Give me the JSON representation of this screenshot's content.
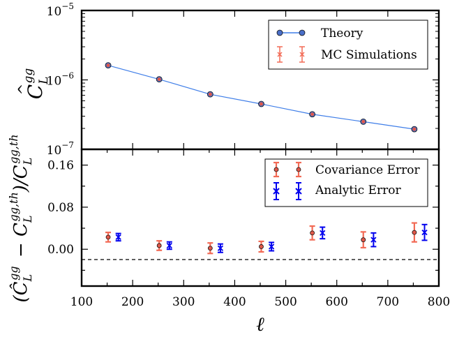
{
  "chart_data": [
    {
      "type": "line",
      "ylabel": "Ĉ_L^{gg}",
      "yscale": "log",
      "xlim": [
        100,
        800
      ],
      "ylim_exp": [
        -7,
        -5
      ],
      "ytick_labels": [
        {
          "base": "10",
          "exp": "−7"
        },
        {
          "base": "10",
          "exp": "−6"
        },
        {
          "base": "10",
          "exp": "−5"
        }
      ],
      "legend": {
        "placement": "top-right",
        "entries": [
          "Theory",
          "MC Simulations"
        ]
      },
      "x": [
        152,
        252,
        352,
        452,
        552,
        652,
        752
      ],
      "series": [
        {
          "name": "Theory",
          "color": "#3f7ee8",
          "values": [
            1.62e-06,
            1.02e-06,
            6.2e-07,
            4.5e-07,
            3.2e-07,
            2.5e-07,
            1.95e-07
          ]
        },
        {
          "name": "MC Simulations",
          "color": "#f26a55",
          "values": [
            1.62e-06,
            1.02e-06,
            6.2e-07,
            4.5e-07,
            3.2e-07,
            2.5e-07,
            1.95e-07
          ],
          "err": [
            6e-08,
            4e-08,
            2.4e-08,
            1.8e-08,
            1.5e-08,
            1.3e-08,
            1.2e-08
          ]
        }
      ]
    },
    {
      "type": "scatter",
      "ylabel": "(Ĉ_L^{gg} − C_L^{gg,th}) / C_L^{gg,th}",
      "xlabel": "ℓ",
      "xlim": [
        100,
        800
      ],
      "ylim": [
        -0.07,
        0.19
      ],
      "xticks": [
        "100",
        "200",
        "300",
        "400",
        "500",
        "600",
        "700",
        "800"
      ],
      "yticks": [
        "0.00",
        "0.08",
        "0.16"
      ],
      "reference_line": 0.0,
      "legend": {
        "placement": "top-right",
        "entries": [
          "Covariance Error",
          "Analytic Error"
        ]
      },
      "series": [
        {
          "name": "Covariance Error",
          "color": "#f26a55",
          "marker_color": "#e0584a",
          "x": [
            152,
            252,
            352,
            452,
            552,
            652,
            752
          ],
          "values": [
            0.023,
            0.007,
            0.002,
            0.005,
            0.031,
            0.018,
            0.032
          ],
          "err": [
            0.009,
            0.009,
            0.01,
            0.01,
            0.013,
            0.015,
            0.018
          ]
        },
        {
          "name": "Analytic Error",
          "color": "#0000ee",
          "x": [
            172,
            272,
            372,
            472,
            572,
            672,
            772
          ],
          "values": [
            0.023,
            0.007,
            0.002,
            0.005,
            0.031,
            0.018,
            0.032
          ],
          "err": [
            0.007,
            0.007,
            0.008,
            0.008,
            0.011,
            0.013,
            0.015
          ]
        }
      ]
    }
  ]
}
